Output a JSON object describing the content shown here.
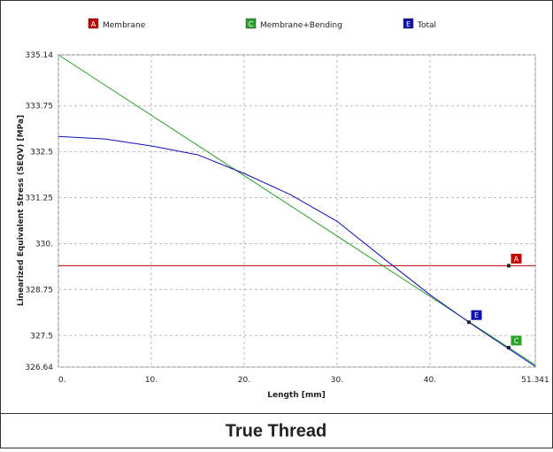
{
  "chart_data": {
    "type": "line",
    "x_label": "Length [mm]",
    "y_label": "Linearized Equivalent Stress (SEQV) [MPa]",
    "caption": "True Thread",
    "xlim": [
      0,
      51.341
    ],
    "xticks": [
      {
        "value": 0,
        "label": "0."
      },
      {
        "value": 10,
        "label": "10."
      },
      {
        "value": 20,
        "label": "20."
      },
      {
        "value": 30,
        "label": "30."
      },
      {
        "value": 40,
        "label": "40."
      },
      51.341
    ],
    "ylim": [
      326.64,
      335.14
    ],
    "yticks": [
      326.64,
      327.5,
      328.75,
      {
        "value": 330,
        "label": "330."
      },
      331.25,
      332.5,
      333.75,
      335.14
    ],
    "grid": true,
    "series": [
      {
        "name": "Membrane",
        "tag": "A",
        "color": "#c00000",
        "x": [
          0,
          51.341
        ],
        "values": [
          329.4,
          329.4
        ]
      },
      {
        "name": "Membrane+Bending",
        "tag": "C",
        "color": "#2ca02c",
        "x": [
          0,
          51.341
        ],
        "values": [
          335.14,
          326.7
        ]
      },
      {
        "name": "Total",
        "tag": "E",
        "color": "#1010b0",
        "x": [
          0,
          5,
          10,
          15,
          20,
          25,
          30,
          35,
          40,
          45,
          51.341
        ],
        "values": [
          332.92,
          332.85,
          332.66,
          332.42,
          331.91,
          331.33,
          330.61,
          329.6,
          328.61,
          327.72,
          326.66
        ]
      }
    ]
  }
}
